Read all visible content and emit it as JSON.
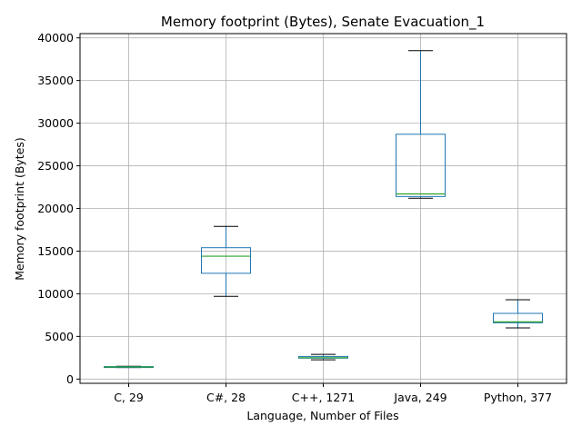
{
  "chart_data": {
    "type": "box",
    "title": "Memory footprint (Bytes), Senate Evacuation_1",
    "xlabel": "Language, Number of Files",
    "ylabel": "Memory footprint (Bytes)",
    "ylim": [
      -500,
      40500
    ],
    "yticks": [
      0,
      5000,
      10000,
      15000,
      20000,
      25000,
      30000,
      35000,
      40000
    ],
    "ytick_labels": [
      "0",
      "5000",
      "10000",
      "15000",
      "20000",
      "25000",
      "30000",
      "35000",
      "40000"
    ],
    "grid": true,
    "categories": [
      "C, 29",
      "C#, 28",
      "C++, 1271",
      "Java, 249",
      "Python, 377"
    ],
    "boxes": [
      {
        "category": "C, 29",
        "whisker_low": 1350,
        "q1": 1380,
        "median": 1420,
        "q3": 1460,
        "whisker_high": 1500
      },
      {
        "category": "C#, 28",
        "whisker_low": 9700,
        "q1": 12400,
        "median": 14400,
        "q3": 15400,
        "whisker_high": 17900
      },
      {
        "category": "C++, 1271",
        "whisker_low": 2250,
        "q1": 2450,
        "median": 2500,
        "q3": 2650,
        "whisker_high": 2900
      },
      {
        "category": "Java, 249",
        "whisker_low": 21200,
        "q1": 21400,
        "median": 21700,
        "q3": 28700,
        "whisker_high": 38500
      },
      {
        "category": "Python, 377",
        "whisker_low": 6000,
        "q1": 6600,
        "median": 6700,
        "q3": 7700,
        "whisker_high": 9300
      }
    ],
    "colors": {
      "box": "#1f77b4",
      "median": "#2ca02c",
      "whisker_cap": "#000000",
      "grid": "#b0b0b0",
      "axis": "#000000"
    }
  }
}
